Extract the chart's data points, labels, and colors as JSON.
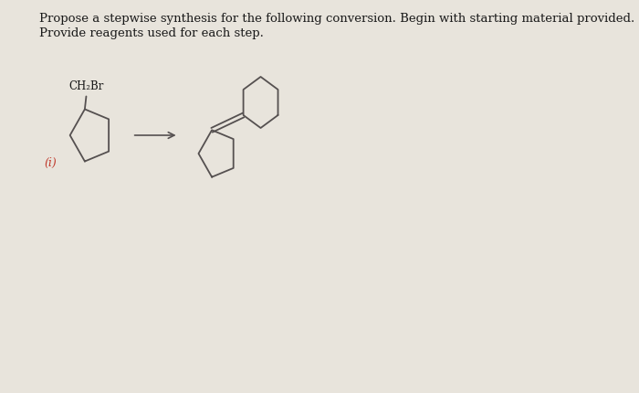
{
  "title_line1": "Propose a stepwise synthesis for the following conversion. Begin with starting material provided.",
  "title_line2": "Provide reagents used for each step.",
  "label_i": "(i)",
  "ch2br_label": "CH₂Br",
  "bg_color": "#e8e4dc",
  "text_color": "#1a1a1a",
  "line_color": "#555050",
  "title_fontsize": 9.5,
  "label_fontsize": 9,
  "struct_fontsize": 8.5,
  "lw": 1.3
}
